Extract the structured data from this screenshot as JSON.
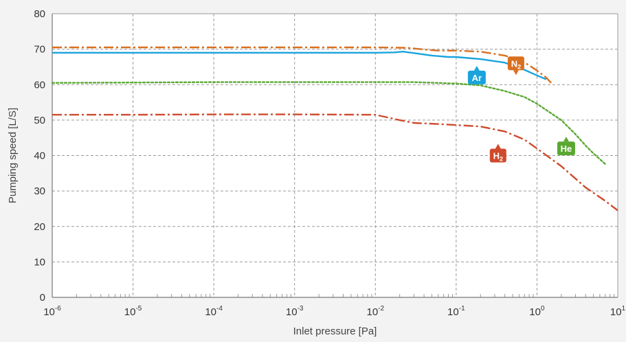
{
  "chart_data": {
    "type": "line",
    "title": "",
    "xlabel": "Inlet pressure [Pa]",
    "ylabel": "Pumping speed [L/S]",
    "x_scale": "log",
    "xlim": [
      1e-06,
      10
    ],
    "ylim": [
      0,
      80
    ],
    "grid": true,
    "x_ticks": [
      {
        "base": "10",
        "exp": "-6",
        "value": 1e-06
      },
      {
        "base": "10",
        "exp": "-5",
        "value": 1e-05
      },
      {
        "base": "10",
        "exp": "-4",
        "value": 0.0001
      },
      {
        "base": "10",
        "exp": "-3",
        "value": 0.001
      },
      {
        "base": "10",
        "exp": "-2",
        "value": 0.01
      },
      {
        "base": "10",
        "exp": "-1",
        "value": 0.1
      },
      {
        "base": "10",
        "exp": "0",
        "value": 1
      },
      {
        "base": "10",
        "exp": "1",
        "value": 10
      }
    ],
    "y_ticks": [
      "0",
      "10",
      "20",
      "30",
      "40",
      "50",
      "60",
      "70",
      "80"
    ],
    "series": [
      {
        "name": "N2",
        "label_main": "N",
        "label_sub": "2",
        "color": "#d96f1f",
        "line_style": "dash-dot",
        "x": [
          1e-06,
          1e-05,
          0.0001,
          0.001,
          0.01,
          0.025,
          0.04,
          0.06,
          0.1,
          0.2,
          0.4,
          0.7,
          1.0,
          1.3,
          1.5
        ],
        "y": [
          70.5,
          70.5,
          70.5,
          70.5,
          70.5,
          70.4,
          69.9,
          69.6,
          69.6,
          69.3,
          68.2,
          66.3,
          64.0,
          62.0,
          60.5
        ]
      },
      {
        "name": "Ar",
        "label_main": "Ar",
        "label_sub": "",
        "color": "#1aa3dc",
        "line_style": "solid",
        "x": [
          1e-06,
          1e-05,
          0.0001,
          0.001,
          0.01,
          0.017,
          0.022,
          0.03,
          0.05,
          0.08,
          0.1,
          0.2,
          0.4,
          0.7,
          1.0,
          1.3
        ],
        "y": [
          69.0,
          69.0,
          69.0,
          69.0,
          69.0,
          69.1,
          69.3,
          68.9,
          68.2,
          67.8,
          67.8,
          67.2,
          66.2,
          64.2,
          62.6,
          61.5
        ]
      },
      {
        "name": "He",
        "label_main": "He",
        "label_sub": "",
        "color": "#5aa832",
        "line_style": "dotted",
        "x": [
          1e-06,
          1e-05,
          0.0001,
          0.001,
          0.01,
          0.03,
          0.1,
          0.2,
          0.4,
          0.7,
          1.0,
          2.0,
          3.0,
          4.0,
          5.0,
          7.0
        ],
        "y": [
          60.5,
          60.6,
          60.7,
          60.7,
          60.7,
          60.7,
          60.3,
          59.8,
          58.2,
          56.5,
          54.6,
          50.0,
          46.0,
          42.8,
          40.6,
          37.6
        ]
      },
      {
        "name": "H2",
        "label_main": "H",
        "label_sub": "2",
        "color": "#cf4a2c",
        "line_style": "dash-dot",
        "x": [
          1e-06,
          1e-05,
          0.0001,
          0.001,
          0.01,
          0.02,
          0.03,
          0.06,
          0.1,
          0.2,
          0.4,
          0.7,
          1.0,
          2.0,
          4.0,
          7.0,
          10.0
        ],
        "y": [
          51.5,
          51.5,
          51.6,
          51.6,
          51.5,
          50.0,
          49.2,
          48.9,
          48.6,
          48.2,
          46.8,
          44.5,
          42.0,
          37.0,
          31.0,
          27.2,
          24.5
        ]
      }
    ]
  }
}
